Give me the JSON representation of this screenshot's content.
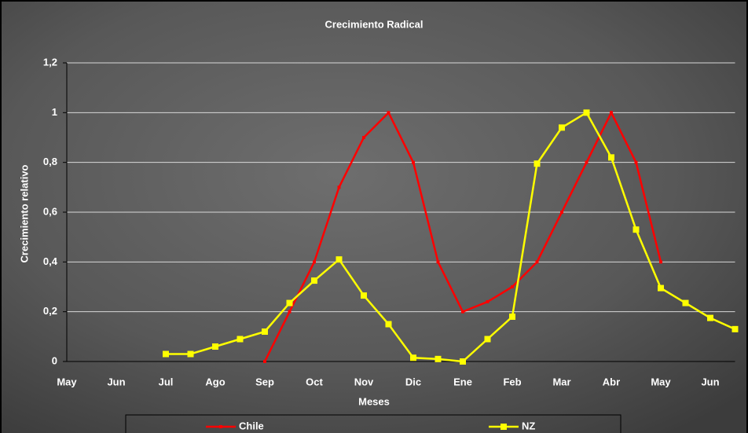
{
  "chart_data": {
    "type": "line",
    "title": "Crecimiento Radical",
    "x_label": "Meses",
    "y_label": "Crecimiento relativo",
    "categories": [
      "May",
      null,
      "Jun",
      null,
      "Jul",
      null,
      "Ago",
      null,
      "Sep",
      null,
      "Oct",
      null,
      "Nov",
      null,
      "Dic",
      null,
      "Ene",
      null,
      "Feb",
      null,
      "Mar",
      null,
      "Abr",
      null,
      "May",
      null,
      "Jun",
      null
    ],
    "series": [
      {
        "name": "Chile",
        "color": "#ff0000",
        "values": [
          null,
          null,
          null,
          null,
          null,
          null,
          null,
          null,
          0,
          0.2,
          0.4,
          0.7,
          0.9,
          1.0,
          0.8,
          0.4,
          0.2,
          0.24,
          0.3,
          0.4,
          0.6,
          0.8,
          1.0,
          0.8,
          0.4,
          null,
          null,
          null
        ]
      },
      {
        "name": "NZ",
        "color": "#ffff00",
        "values": [
          null,
          null,
          null,
          null,
          0.03,
          0.03,
          0.06,
          0.09,
          0.12,
          0.235,
          0.325,
          0.41,
          0.265,
          0.15,
          0.015,
          0.01,
          0.0,
          0.09,
          0.18,
          0.795,
          0.94,
          1.0,
          0.82,
          0.53,
          0.295,
          0.235,
          0.175,
          0.13
        ]
      }
    ],
    "ylim": [
      0,
      1.2
    ],
    "yticks": [
      0,
      {
        "value": 0.2,
        "label": "0,2"
      },
      {
        "value": 0.4,
        "label": "0,4"
      },
      {
        "value": 0.6,
        "label": "0,6"
      },
      {
        "value": 0.8,
        "label": "0,8"
      },
      1,
      {
        "value": 1.2,
        "label": "1,2"
      }
    ],
    "grid": true,
    "legend": "bottom"
  }
}
